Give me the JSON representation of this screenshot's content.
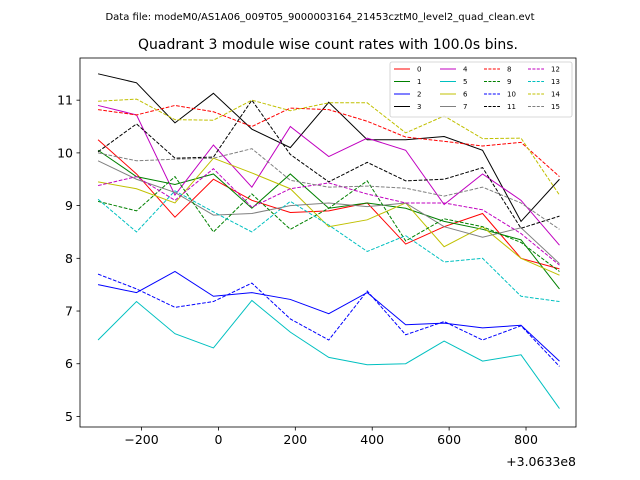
{
  "figure": {
    "suptitle": "Data file: modeM0/AS1A06_009T05_9000003164_21453cztM0_level2_quad_clean.evt",
    "title": "Quadrant 3 module wise count rates with 100.0s bins."
  },
  "chart_data": {
    "type": "line",
    "title": "Quadrant 3 module wise count rates with 100.0s bins.",
    "xlabel": "",
    "ylabel": "",
    "x_offset_label": "+3.0633e8",
    "xlim": [
      -360,
      930
    ],
    "ylim": [
      4.8,
      11.8
    ],
    "xticks": [
      -200,
      0,
      200,
      400,
      600,
      800
    ],
    "xtick_labels": [
      "−200",
      "0",
      "200",
      "400",
      "600",
      "800"
    ],
    "yticks": [
      5,
      6,
      7,
      8,
      9,
      10,
      11
    ],
    "ytick_labels": [
      "5",
      "6",
      "7",
      "8",
      "9",
      "10",
      "11"
    ],
    "grid": false,
    "legend_position": "top-right",
    "x": [
      -313,
      -213,
      -113,
      -13,
      87,
      187,
      287,
      387,
      487,
      587,
      687,
      787,
      887
    ],
    "series": [
      {
        "name": "0",
        "color": "#ff0000",
        "dash": false,
        "values": [
          10.25,
          9.6,
          8.78,
          9.5,
          9.1,
          8.87,
          8.9,
          9.05,
          8.27,
          8.6,
          8.85,
          8.0,
          7.8
        ]
      },
      {
        "name": "1",
        "color": "#008000",
        "dash": false,
        "values": [
          10.05,
          9.55,
          9.4,
          9.6,
          8.95,
          9.6,
          8.95,
          9.05,
          8.95,
          8.7,
          8.55,
          8.35,
          7.42
        ]
      },
      {
        "name": "2",
        "color": "#0000ff",
        "dash": false,
        "values": [
          7.5,
          7.35,
          7.75,
          7.28,
          7.35,
          7.22,
          6.95,
          7.35,
          6.74,
          6.77,
          6.68,
          6.73,
          6.05
        ]
      },
      {
        "name": "3",
        "color": "#000000",
        "dash": false,
        "values": [
          11.5,
          11.33,
          10.57,
          11.13,
          10.45,
          10.1,
          10.96,
          10.25,
          10.25,
          10.31,
          10.05,
          8.7,
          9.5
        ]
      },
      {
        "name": "4",
        "color": "#c000c0",
        "dash": false,
        "values": [
          10.9,
          10.72,
          9.2,
          10.15,
          9.35,
          10.5,
          9.93,
          10.28,
          10.05,
          9.02,
          9.6,
          9.1,
          8.25
        ]
      },
      {
        "name": "5",
        "color": "#00c0c0",
        "dash": false,
        "values": [
          6.45,
          7.18,
          6.57,
          6.3,
          7.2,
          6.6,
          6.12,
          5.98,
          6.0,
          6.43,
          6.05,
          6.17,
          5.15
        ]
      },
      {
        "name": "6",
        "color": "#c0c000",
        "dash": false,
        "values": [
          9.45,
          9.32,
          9.05,
          9.9,
          9.62,
          9.32,
          8.6,
          8.73,
          9.05,
          8.22,
          8.6,
          8.0,
          7.68
        ]
      },
      {
        "name": "7",
        "color": "#808080",
        "dash": false,
        "values": [
          9.85,
          9.5,
          9.25,
          8.82,
          8.85,
          9.0,
          9.05,
          8.98,
          9.05,
          8.6,
          8.4,
          8.58,
          7.9
        ]
      },
      {
        "name": "8",
        "color": "#ff0000",
        "dash": true,
        "values": [
          10.82,
          10.72,
          10.9,
          10.78,
          10.5,
          10.85,
          10.82,
          10.6,
          10.3,
          10.22,
          10.13,
          10.2,
          9.55
        ]
      },
      {
        "name": "9",
        "color": "#008000",
        "dash": true,
        "values": [
          9.08,
          8.9,
          9.55,
          8.5,
          9.22,
          8.55,
          8.95,
          9.47,
          8.33,
          8.75,
          8.6,
          8.3,
          7.75
        ]
      },
      {
        "name": "10",
        "color": "#0000ff",
        "dash": true,
        "values": [
          7.7,
          7.42,
          7.07,
          7.18,
          7.53,
          6.85,
          6.45,
          7.38,
          6.55,
          6.8,
          6.45,
          6.72,
          5.95
        ]
      },
      {
        "name": "11",
        "color": "#000000",
        "dash": true,
        "values": [
          10.02,
          10.55,
          9.9,
          9.92,
          11.0,
          9.97,
          9.45,
          9.82,
          9.47,
          9.5,
          9.72,
          8.57,
          8.8
        ]
      },
      {
        "name": "12",
        "color": "#c000c0",
        "dash": true,
        "values": [
          9.38,
          9.55,
          9.1,
          9.7,
          8.97,
          9.32,
          9.43,
          9.22,
          9.05,
          9.05,
          8.92,
          8.47,
          7.87
        ]
      },
      {
        "name": "13",
        "color": "#00c0c0",
        "dash": true,
        "values": [
          9.12,
          8.5,
          9.28,
          8.88,
          8.5,
          9.08,
          8.63,
          8.13,
          8.43,
          7.93,
          8.0,
          7.28,
          7.18
        ]
      },
      {
        "name": "14",
        "color": "#c0c000",
        "dash": true,
        "values": [
          10.98,
          11.02,
          10.63,
          10.62,
          11.0,
          10.8,
          10.95,
          10.95,
          10.38,
          10.7,
          10.27,
          10.28,
          9.2
        ]
      },
      {
        "name": "15",
        "color": "#808080",
        "dash": true,
        "values": [
          10.0,
          9.85,
          9.88,
          9.9,
          10.08,
          9.48,
          9.35,
          9.37,
          9.33,
          9.18,
          9.35,
          9.05,
          8.55
        ]
      }
    ]
  }
}
